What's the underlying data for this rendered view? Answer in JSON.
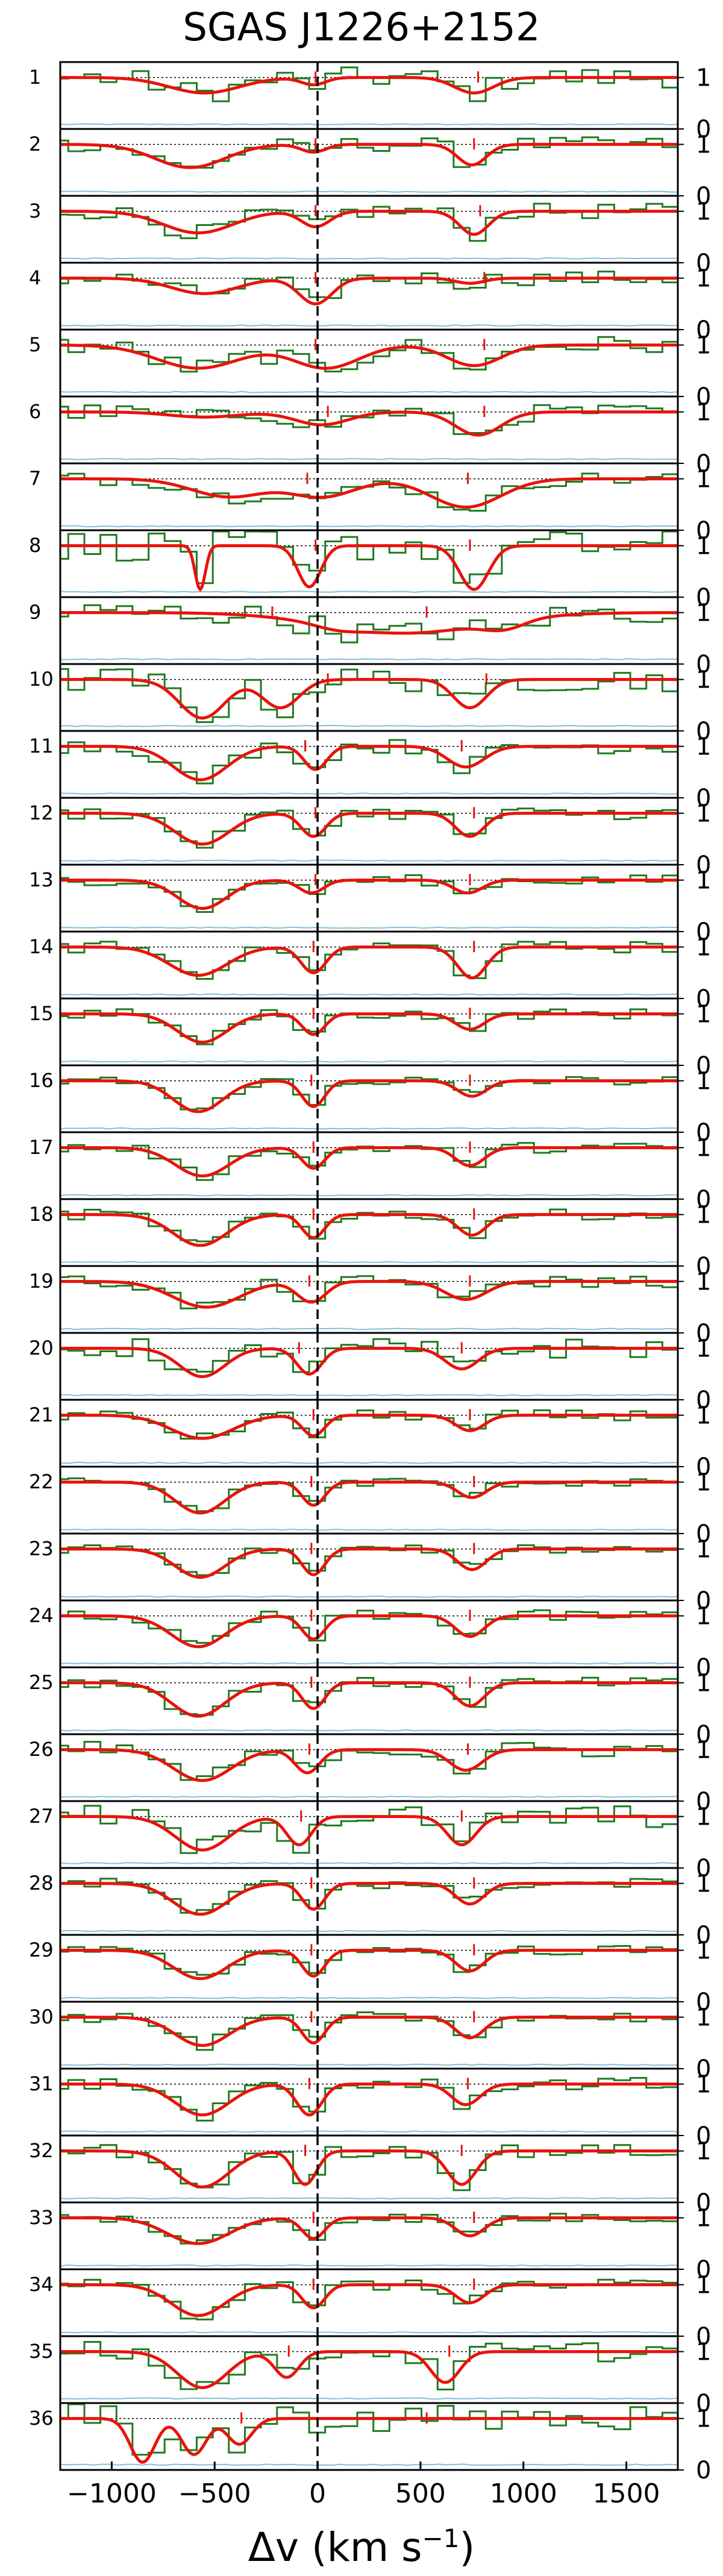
{
  "chart_data": {
    "type": "line",
    "title": "SGAS J1226+2152",
    "xlabel": "Δv (km s",
    "xlabel_exponent": "−1",
    "xlim": [
      -1250,
      1750
    ],
    "ylim_each_panel": [
      0,
      1.3
    ],
    "x_ticks": [
      -1000,
      -500,
      0,
      500,
      1000,
      1500
    ],
    "x_tick_labels": [
      "−1000",
      "−500",
      "0",
      "500",
      "1000",
      "1500"
    ],
    "y_tick_labels": [
      "1",
      "0"
    ],
    "continuum_level": 1,
    "reference_velocity": 0,
    "grid": false,
    "colors": {
      "data": "#1f7a1f",
      "model": "#e8130c",
      "error": "#87bfd6",
      "frame": "#000000",
      "reference": "#000000"
    },
    "panels": [
      {
        "label": "1",
        "comp_v": [
          -550,
          -20,
          760
        ],
        "depth": [
          0.3,
          0.14,
          0.3
        ],
        "width": [
          170,
          60,
          95
        ],
        "ticks": [
          -10,
          780
        ],
        "noise": 0.2
      },
      {
        "label": "2",
        "comp_v": [
          -620,
          -20,
          750
        ],
        "depth": [
          0.45,
          0.15,
          0.4
        ],
        "width": [
          170,
          60,
          70
        ],
        "ticks": [
          -10,
          760
        ],
        "noise": 0.14
      },
      {
        "label": "3",
        "comp_v": [
          -580,
          -10,
          760
        ],
        "depth": [
          0.42,
          0.3,
          0.45
        ],
        "width": [
          170,
          70,
          70
        ],
        "ticks": [
          -10,
          790
        ],
        "noise": 0.15
      },
      {
        "label": "4",
        "comp_v": [
          -550,
          -10,
          740
        ],
        "depth": [
          0.3,
          0.5,
          0.1
        ],
        "width": [
          160,
          80,
          70
        ],
        "ticks": [
          -10,
          810
        ],
        "noise": 0.14
      },
      {
        "label": "5",
        "comp_v": [
          -580,
          40,
          760
        ],
        "depth": [
          0.45,
          0.45,
          0.4
        ],
        "width": [
          200,
          160,
          130
        ],
        "ticks": [
          -10,
          810
        ],
        "noise": 0.18
      },
      {
        "label": "6",
        "comp_v": [
          -550,
          20,
          780
        ],
        "depth": [
          0.1,
          0.25,
          0.45
        ],
        "width": [
          170,
          130,
          110
        ],
        "ticks": [
          50,
          810
        ],
        "noise": 0.15
      },
      {
        "label": "7",
        "comp_v": [
          -430,
          20,
          720
        ],
        "depth": [
          0.35,
          0.35,
          0.55
        ],
        "width": [
          180,
          160,
          170
        ],
        "ticks": [
          -50,
          730
        ],
        "noise": 0.13
      },
      {
        "label": "8",
        "comp_v": [
          -570,
          -40,
          760
        ],
        "depth": [
          0.85,
          0.8,
          0.85
        ],
        "width": [
          25,
          55,
          70
        ],
        "ticks": [
          -10,
          740
        ],
        "noise": 0.3
      },
      {
        "label": "9",
        "comp_v": [
          420,
          100,
          900
        ],
        "depth": [
          0.4,
          0.1,
          0.2
        ],
        "width": [
          380,
          100,
          100
        ],
        "ticks": [
          -220,
          530
        ],
        "noise": 0.22
      },
      {
        "label": "10",
        "comp_v": [
          -560,
          -180,
          740
        ],
        "depth": [
          0.75,
          0.55,
          0.55
        ],
        "width": [
          110,
          90,
          80
        ],
        "ticks": [
          50,
          820
        ],
        "noise": 0.24
      },
      {
        "label": "11",
        "comp_v": [
          -570,
          -10,
          720
        ],
        "depth": [
          0.65,
          0.45,
          0.4
        ],
        "width": [
          130,
          55,
          90
        ],
        "ticks": [
          -60,
          700
        ],
        "noise": 0.14
      },
      {
        "label": "12",
        "comp_v": [
          -560,
          -20,
          740
        ],
        "depth": [
          0.6,
          0.45,
          0.45
        ],
        "width": [
          130,
          60,
          70
        ],
        "ticks": [
          -10,
          760
        ],
        "noise": 0.12
      },
      {
        "label": "13",
        "comp_v": [
          -560,
          -30,
          730
        ],
        "depth": [
          0.55,
          0.25,
          0.25
        ],
        "width": [
          120,
          60,
          70
        ],
        "ticks": [
          -10,
          740
        ],
        "noise": 0.1
      },
      {
        "label": "14",
        "comp_v": [
          -580,
          -20,
          750
        ],
        "depth": [
          0.55,
          0.5,
          0.6
        ],
        "width": [
          140,
          60,
          70
        ],
        "ticks": [
          -20,
          760
        ],
        "noise": 0.11
      },
      {
        "label": "15",
        "comp_v": [
          -560,
          -20,
          740
        ],
        "depth": [
          0.55,
          0.4,
          0.3
        ],
        "width": [
          120,
          55,
          70
        ],
        "ticks": [
          -20,
          740
        ],
        "noise": 0.1
      },
      {
        "label": "16",
        "comp_v": [
          -580,
          -20,
          750
        ],
        "depth": [
          0.6,
          0.5,
          0.3
        ],
        "width": [
          120,
          55,
          70
        ],
        "ticks": [
          -30,
          740
        ],
        "noise": 0.09
      },
      {
        "label": "17",
        "comp_v": [
          -560,
          -20,
          740
        ],
        "depth": [
          0.55,
          0.4,
          0.35
        ],
        "width": [
          130,
          55,
          70
        ],
        "ticks": [
          -20,
          740
        ],
        "noise": 0.1
      },
      {
        "label": "18",
        "comp_v": [
          -570,
          -20,
          750
        ],
        "depth": [
          0.6,
          0.45,
          0.4
        ],
        "width": [
          130,
          55,
          70
        ],
        "ticks": [
          -20,
          760
        ],
        "noise": 0.1
      },
      {
        "label": "19",
        "comp_v": [
          -540,
          -30,
          720
        ],
        "depth": [
          0.5,
          0.4,
          0.35
        ],
        "width": [
          160,
          70,
          100
        ],
        "ticks": [
          -40,
          740
        ],
        "noise": 0.12
      },
      {
        "label": "20",
        "comp_v": [
          -560,
          -40,
          700
        ],
        "depth": [
          0.55,
          0.5,
          0.4
        ],
        "width": [
          110,
          60,
          80
        ],
        "ticks": [
          -90,
          700
        ],
        "noise": 0.2
      },
      {
        "label": "21",
        "comp_v": [
          -560,
          -20,
          740
        ],
        "depth": [
          0.45,
          0.4,
          0.3
        ],
        "width": [
          150,
          55,
          70
        ],
        "ticks": [
          -20,
          740
        ],
        "noise": 0.1
      },
      {
        "label": "22",
        "comp_v": [
          -570,
          -20,
          750
        ],
        "depth": [
          0.6,
          0.45,
          0.3
        ],
        "width": [
          120,
          55,
          70
        ],
        "ticks": [
          -30,
          760
        ],
        "noise": 0.09
      },
      {
        "label": "23",
        "comp_v": [
          -570,
          -20,
          750
        ],
        "depth": [
          0.55,
          0.5,
          0.4
        ],
        "width": [
          120,
          55,
          70
        ],
        "ticks": [
          -30,
          760
        ],
        "noise": 0.08
      },
      {
        "label": "24",
        "comp_v": [
          -580,
          -20,
          740
        ],
        "depth": [
          0.6,
          0.45,
          0.4
        ],
        "width": [
          130,
          55,
          70
        ],
        "ticks": [
          -30,
          740
        ],
        "noise": 0.11
      },
      {
        "label": "25",
        "comp_v": [
          -580,
          -20,
          740
        ],
        "depth": [
          0.65,
          0.5,
          0.45
        ],
        "width": [
          130,
          55,
          70
        ],
        "ticks": [
          -30,
          740
        ],
        "noise": 0.1
      },
      {
        "label": "26",
        "comp_v": [
          -560,
          -50,
          720
        ],
        "depth": [
          0.6,
          0.45,
          0.4
        ],
        "width": [
          140,
          60,
          80
        ],
        "ticks": [
          -40,
          730
        ],
        "noise": 0.16
      },
      {
        "label": "27",
        "comp_v": [
          -560,
          -90,
          700
        ],
        "depth": [
          0.65,
          0.55,
          0.55
        ],
        "width": [
          130,
          60,
          70
        ],
        "ticks": [
          -80,
          700
        ],
        "noise": 0.22
      },
      {
        "label": "28",
        "comp_v": [
          -570,
          -20,
          740
        ],
        "depth": [
          0.6,
          0.5,
          0.4
        ],
        "width": [
          130,
          55,
          70
        ],
        "ticks": [
          -30,
          760
        ],
        "noise": 0.1
      },
      {
        "label": "29",
        "comp_v": [
          -570,
          -20,
          740
        ],
        "depth": [
          0.55,
          0.5,
          0.4
        ],
        "width": [
          130,
          55,
          70
        ],
        "ticks": [
          -30,
          760
        ],
        "noise": 0.09
      },
      {
        "label": "30",
        "comp_v": [
          -560,
          -20,
          740
        ],
        "depth": [
          0.55,
          0.5,
          0.4
        ],
        "width": [
          130,
          55,
          70
        ],
        "ticks": [
          -30,
          760
        ],
        "noise": 0.1
      },
      {
        "label": "31",
        "comp_v": [
          -560,
          -40,
          720
        ],
        "depth": [
          0.6,
          0.6,
          0.4
        ],
        "width": [
          130,
          60,
          70
        ],
        "ticks": [
          -40,
          730
        ],
        "noise": 0.12
      },
      {
        "label": "32",
        "comp_v": [
          -560,
          -60,
          700
        ],
        "depth": [
          0.7,
          0.65,
          0.65
        ],
        "width": [
          130,
          55,
          70
        ],
        "ticks": [
          -60,
          700
        ],
        "noise": 0.13
      },
      {
        "label": "33",
        "comp_v": [
          -580,
          -20,
          740
        ],
        "depth": [
          0.5,
          0.4,
          0.35
        ],
        "width": [
          150,
          55,
          70
        ],
        "ticks": [
          -20,
          760
        ],
        "noise": 0.09
      },
      {
        "label": "34",
        "comp_v": [
          -580,
          -20,
          740
        ],
        "depth": [
          0.6,
          0.45,
          0.35
        ],
        "width": [
          130,
          55,
          70
        ],
        "ticks": [
          -20,
          760
        ],
        "noise": 0.1
      },
      {
        "label": "35",
        "comp_v": [
          -560,
          -150,
          620
        ],
        "depth": [
          0.7,
          0.5,
          0.6
        ],
        "width": [
          120,
          60,
          70
        ],
        "ticks": [
          -140,
          640
        ],
        "noise": 0.2
      },
      {
        "label": "36",
        "comp_v": [
          -850,
          -600,
          -380
        ],
        "depth": [
          0.85,
          0.7,
          0.5
        ],
        "width": [
          60,
          60,
          60
        ],
        "ticks": [
          -370,
          530
        ],
        "noise": 0.28
      }
    ]
  }
}
